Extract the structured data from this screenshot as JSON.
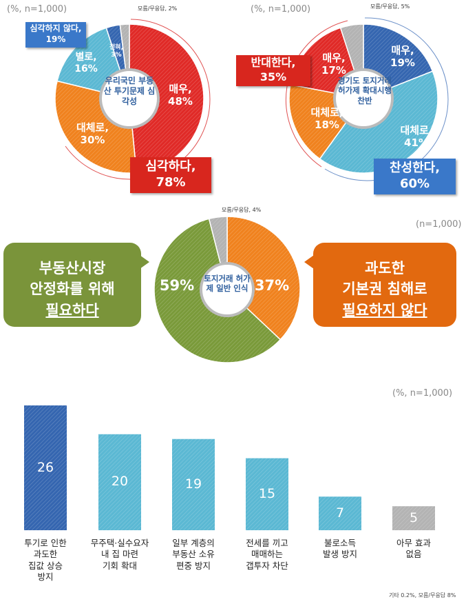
{
  "colors": {
    "red": "#e02a27",
    "orange": "#f0821e",
    "lightblue": "#5bb8d3",
    "darkblue": "#3566b0",
    "gray": "#b3b3b3",
    "green": "#7a9a3a",
    "bubble_orange": "#e2690f"
  },
  "chart_data": [
    {
      "type": "pie",
      "title": "우리국민 부동산 투기문제 심각성",
      "note": "(%, n=1,000)",
      "slices": [
        {
          "name": "매우",
          "value": 48,
          "color": "#e02a27"
        },
        {
          "name": "대체로",
          "value": 30,
          "color": "#f0821e"
        },
        {
          "name": "별로",
          "value": 16,
          "color": "#5bb8d3"
        },
        {
          "name": "전혀",
          "value": 3,
          "color": "#3566b0"
        },
        {
          "name": "모름/무응답",
          "value": 2,
          "color": "#b3b3b3"
        }
      ],
      "labels": {
        "s0": "매우,",
        "v0": "48%",
        "s1": "대체로,",
        "v1": "30%",
        "s2": "별로,",
        "v2": "16%",
        "s3": "전혀,",
        "v3": "3%",
        "s4": "모름/무응답, 2%"
      },
      "groups": [
        {
          "name": "심각하다,",
          "value": "78%"
        },
        {
          "name": "심각하지 않다,",
          "value": "19%"
        }
      ]
    },
    {
      "type": "pie",
      "title": "경기도 토지거래 허가제 확대시행 찬반",
      "note": "(%, n=1,000)",
      "slices": [
        {
          "name": "매우",
          "value": 19,
          "color": "#3566b0"
        },
        {
          "name": "대체로",
          "value": 41,
          "color": "#5bb8d3"
        },
        {
          "name": "대체로",
          "value": 18,
          "color": "#f0821e"
        },
        {
          "name": "매우",
          "value": 17,
          "color": "#e02a27"
        },
        {
          "name": "모름/무응답",
          "value": 5,
          "color": "#b3b3b3"
        }
      ],
      "labels": {
        "s0": "매우,",
        "v0": "19%",
        "s1": "대체로,",
        "v1": "41%",
        "s2": "대체로,",
        "v2": "18%",
        "s3": "매우,",
        "v3": "17%",
        "s4": "모름/무응답, 5%"
      },
      "groups": [
        {
          "name": "찬성한다,",
          "value": "60%"
        },
        {
          "name": "반대한다,",
          "value": "35%"
        }
      ]
    },
    {
      "type": "pie",
      "title": "토지거래 허가제 일반 인식",
      "note": "(n=1,000)",
      "slices": [
        {
          "name": "과도한 기본권 침해로 필요하지 않다",
          "value": 37,
          "color": "#f0821e"
        },
        {
          "name": "부동산시장 안정화를 위해 필요하다",
          "value": 59,
          "color": "#7a9a3a"
        },
        {
          "name": "모름/무응답",
          "value": 4,
          "color": "#b3b3b3"
        }
      ],
      "labels": {
        "v0": "37%",
        "v1": "59%",
        "s2": "모름/무응답, 4%"
      },
      "bubbles": {
        "left": [
          "부동산시장",
          "안정화를 위해",
          "필요하다"
        ],
        "right": [
          "과도한",
          "기본권 침해로",
          "필요하지 않다"
        ]
      }
    },
    {
      "type": "bar",
      "note": "(%, n=1,000)",
      "footnote": "기타 0.2%, 모름/무응답 8%",
      "ylim": [
        0,
        26
      ],
      "categories": [
        [
          "투기로 인한",
          "과도한",
          "집값 상승",
          "방지"
        ],
        [
          "무주택·실수요자",
          "내 집 마련",
          "기회 확대"
        ],
        [
          "일부 계층의",
          "부동산 소유",
          "편중 방지"
        ],
        [
          "전세를 끼고",
          "매매하는",
          "갭투자 차단"
        ],
        [
          "불로소득",
          "발생 방지"
        ],
        [
          "아무 효과",
          "없음"
        ]
      ],
      "values": [
        26,
        20,
        19,
        15,
        7,
        5
      ],
      "colors": [
        "#3566b0",
        "#5bb8d3",
        "#5bb8d3",
        "#5bb8d3",
        "#5bb8d3",
        "#b3b3b3"
      ]
    }
  ]
}
